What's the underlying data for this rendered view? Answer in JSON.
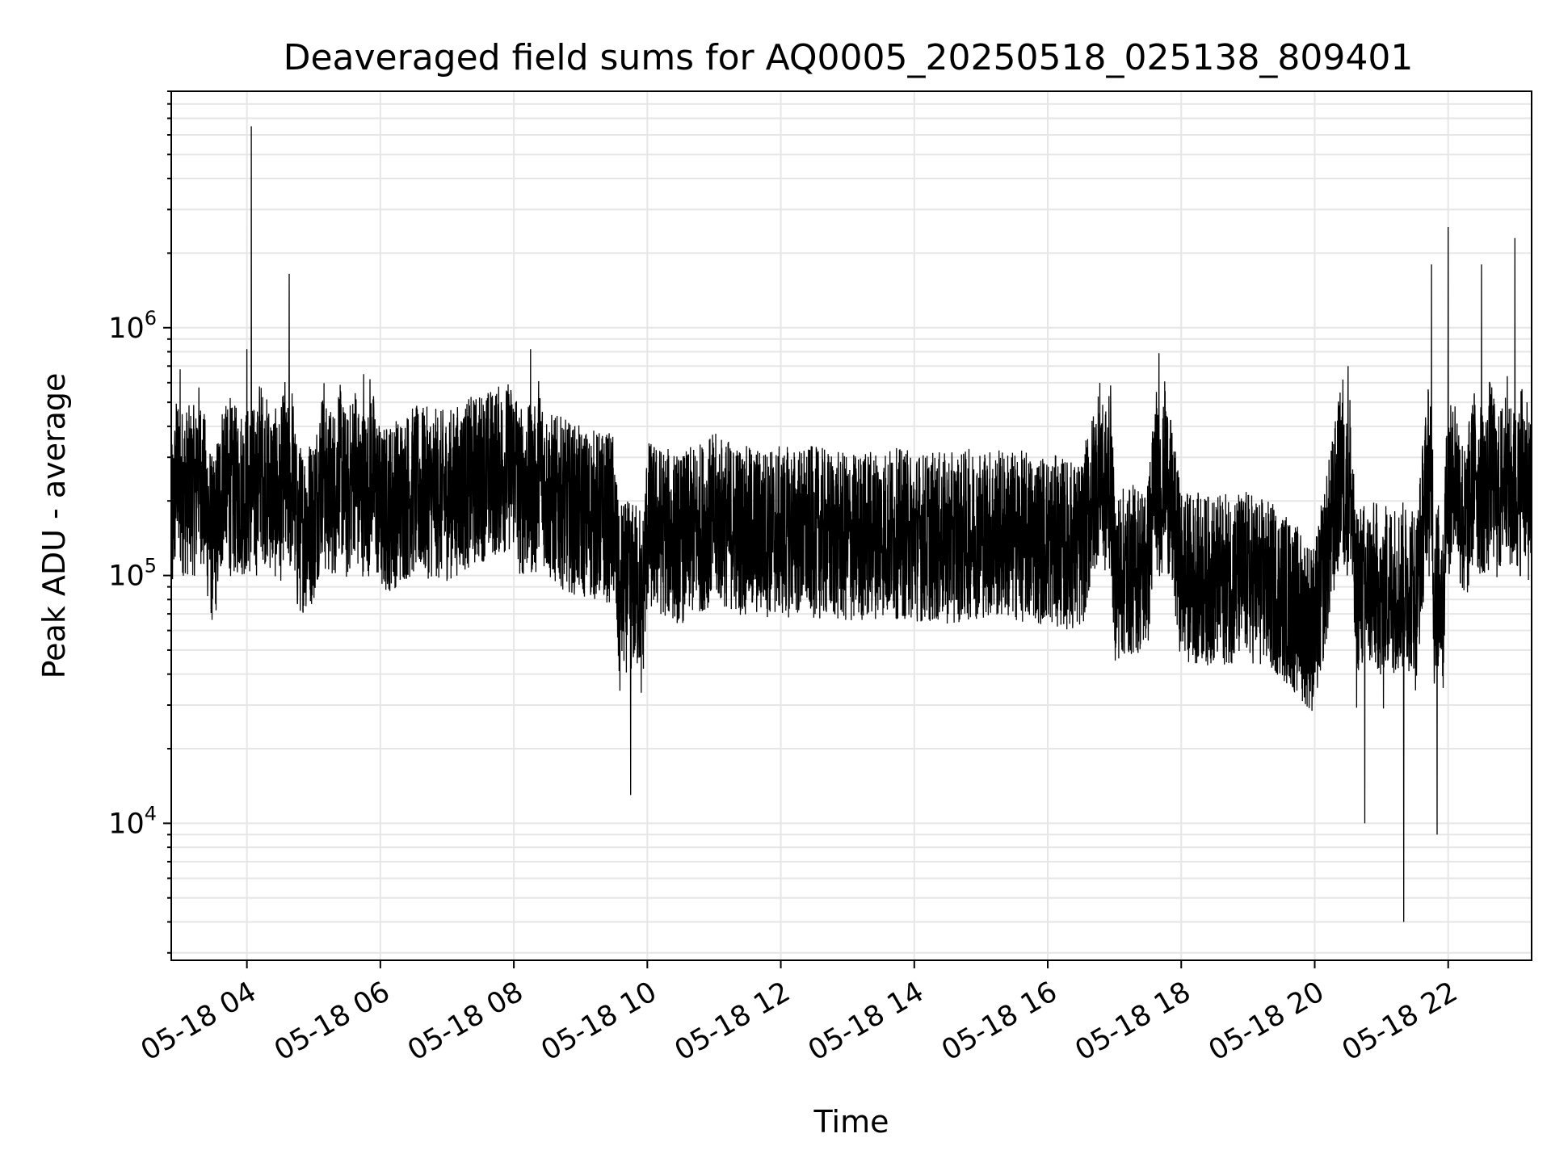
{
  "chart_data": {
    "type": "line",
    "title": "Deaveraged field sums for AQ0005_20250518_025138_809401",
    "xlabel": "Time",
    "ylabel": "Peak ADU - average",
    "y_scale": "log",
    "xlim": [
      "05-18 02:52",
      "05-18 23:15"
    ],
    "ylim": [
      2800,
      9000000
    ],
    "x_ticks": [
      "05-18 04",
      "05-18 06",
      "05-18 08",
      "05-18 10",
      "05-18 12",
      "05-18 14",
      "05-18 16",
      "05-18 18",
      "05-18 20",
      "05-18 22"
    ],
    "y_ticks": [
      {
        "base": "10",
        "exp": "4",
        "value": 10000
      },
      {
        "base": "10",
        "exp": "5",
        "value": 100000
      },
      {
        "base": "10",
        "exp": "6",
        "value": 1000000
      }
    ],
    "grid": "major and minor, light gray",
    "line_color": "#000000",
    "series": [
      {
        "x": [
          "05-18 02:52",
          "05-18 03:00",
          "05-18 03:15",
          "05-18 03:30",
          "05-18 03:45",
          "05-18 04:00",
          "05-18 04:04",
          "05-18 04:15",
          "05-18 04:30",
          "05-18 04:38",
          "05-18 04:45",
          "05-18 05:00",
          "05-18 05:15",
          "05-18 05:30",
          "05-18 05:45",
          "05-18 06:00",
          "05-18 06:30",
          "05-18 07:00",
          "05-18 07:30",
          "05-18 08:00",
          "05-18 08:15",
          "05-18 08:30",
          "05-18 09:00",
          "05-18 09:30",
          "05-18 09:45",
          "05-18 10:00",
          "05-18 10:30",
          "05-18 11:00",
          "05-18 11:30",
          "05-18 12:00",
          "05-18 12:30",
          "05-18 13:00",
          "05-18 13:30",
          "05-18 14:00",
          "05-18 14:30",
          "05-18 15:00",
          "05-18 15:30",
          "05-18 16:00",
          "05-18 16:30",
          "05-18 16:55",
          "05-18 17:00",
          "05-18 17:30",
          "05-18 17:40",
          "05-18 18:00",
          "05-18 18:30",
          "05-18 19:00",
          "05-18 19:30",
          "05-18 20:00",
          "05-18 20:30",
          "05-18 20:45",
          "05-18 21:00",
          "05-18 21:20",
          "05-18 21:30",
          "05-18 21:45",
          "05-18 21:50",
          "05-18 22:00",
          "05-18 22:15",
          "05-18 22:30",
          "05-18 22:45",
          "05-18 23:00",
          "05-18 23:15"
        ],
        "y": [
          140000,
          680000,
          300000,
          130000,
          520000,
          820000,
          6500000,
          250000,
          200000,
          1650000,
          150000,
          170000,
          400000,
          200000,
          650000,
          180000,
          220000,
          210000,
          250000,
          280000,
          820000,
          210000,
          180000,
          170000,
          13000,
          160000,
          140000,
          170000,
          150000,
          150000,
          150000,
          140000,
          150000,
          145000,
          140000,
          150000,
          145000,
          140000,
          130000,
          530000,
          100000,
          110000,
          790000,
          100000,
          95000,
          100000,
          85000,
          60000,
          700000,
          10000,
          80000,
          4000,
          70000,
          1800000,
          9000,
          2550000,
          150000,
          1800000,
          200000,
          2300000,
          180000
        ]
      }
    ]
  }
}
